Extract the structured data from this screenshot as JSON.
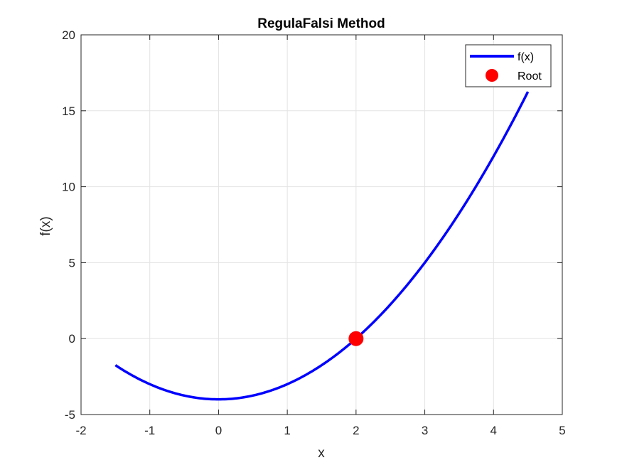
{
  "chart_data": {
    "type": "line",
    "title": "RegulaFalsi Method",
    "xlabel": "x",
    "ylabel": "f(x)",
    "xlim": [
      -2,
      5
    ],
    "ylim": [
      -5,
      20
    ],
    "xticks": [
      -2,
      -1,
      0,
      1,
      2,
      3,
      4,
      5
    ],
    "yticks": [
      -5,
      0,
      5,
      10,
      15,
      20
    ],
    "xtick_labels": [
      "-2",
      "-1",
      "0",
      "1",
      "2",
      "3",
      "4",
      "5"
    ],
    "ytick_labels": [
      "-5",
      "0",
      "5",
      "10",
      "15",
      "20"
    ],
    "grid": true,
    "legend_position": "top-right",
    "series": [
      {
        "name": "f(x)",
        "kind": "line",
        "color": "#0000ff",
        "x_range": [
          -1.5,
          4.5
        ],
        "expression": "x^2 - 4",
        "x": [
          -1.5,
          -1.0,
          -0.5,
          0.0,
          0.5,
          1.0,
          1.5,
          2.0,
          2.5,
          3.0,
          3.5,
          4.0,
          4.5
        ],
        "y": [
          -1.75,
          -3.0,
          -3.75,
          -4.0,
          -3.75,
          -3.0,
          -1.75,
          0.0,
          2.25,
          5.0,
          8.25,
          12.0,
          16.25
        ]
      },
      {
        "name": "Root",
        "kind": "marker",
        "color": "#ff0000",
        "x": [
          2.0
        ],
        "y": [
          0.0
        ]
      }
    ]
  }
}
